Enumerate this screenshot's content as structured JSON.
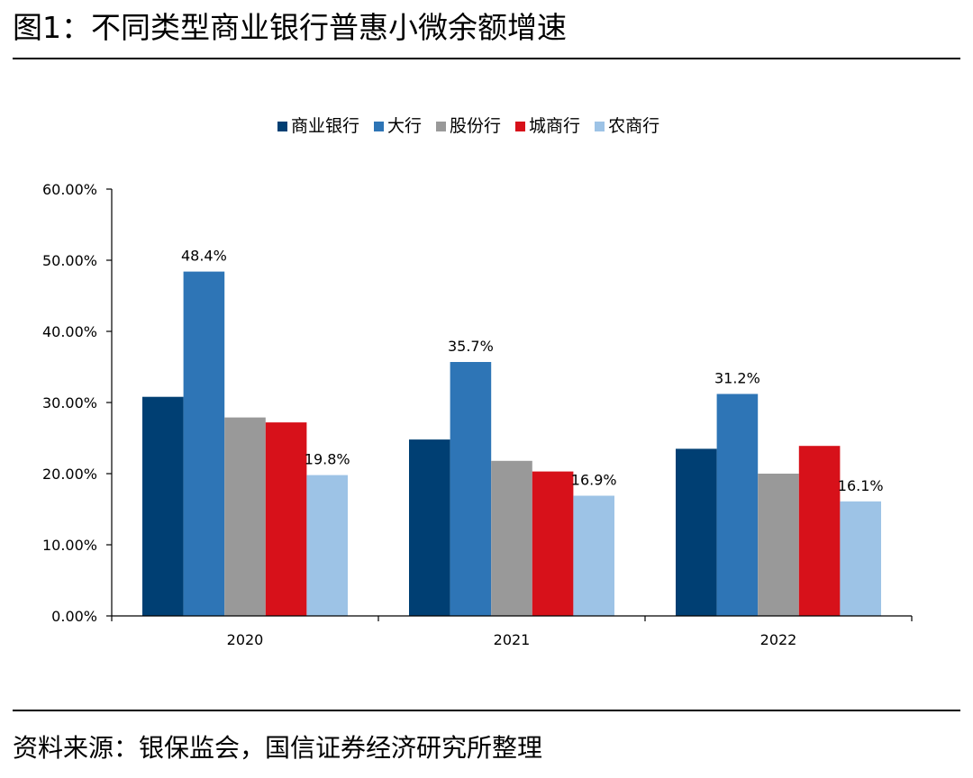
{
  "title": "图1：不同类型商业银行普惠小微余额增速",
  "source": "资料来源：银保监会，国信证券经济研究所整理",
  "chart_data": {
    "type": "bar",
    "title": "图1：不同类型商业银行普惠小微余额增速",
    "xlabel": "",
    "ylabel": "",
    "categories": [
      "2020",
      "2021",
      "2022"
    ],
    "y_ticks": [
      "0.00%",
      "10.00%",
      "20.00%",
      "30.00%",
      "40.00%",
      "50.00%",
      "60.00%"
    ],
    "ylim": [
      0,
      60
    ],
    "grid": false,
    "legend_position": "top-center",
    "series": [
      {
        "name": "商业银行",
        "color": "#003f73",
        "values": [
          30.8,
          24.8,
          23.5
        ],
        "labels": [
          "",
          "",
          ""
        ]
      },
      {
        "name": "大行",
        "color": "#2e75b6",
        "values": [
          48.4,
          35.7,
          31.2
        ],
        "labels": [
          "48.4%",
          "35.7%",
          "31.2%"
        ]
      },
      {
        "name": "股份行",
        "color": "#999999",
        "values": [
          27.9,
          21.8,
          20.0
        ],
        "labels": [
          "",
          "",
          ""
        ]
      },
      {
        "name": "城商行",
        "color": "#d7111a",
        "values": [
          27.2,
          20.3,
          23.9
        ],
        "labels": [
          "",
          "",
          ""
        ]
      },
      {
        "name": "农商行",
        "color": "#9dc3e6",
        "values": [
          19.8,
          16.9,
          16.1
        ],
        "labels": [
          "19.8%",
          "16.9%",
          "16.1%"
        ]
      }
    ]
  }
}
